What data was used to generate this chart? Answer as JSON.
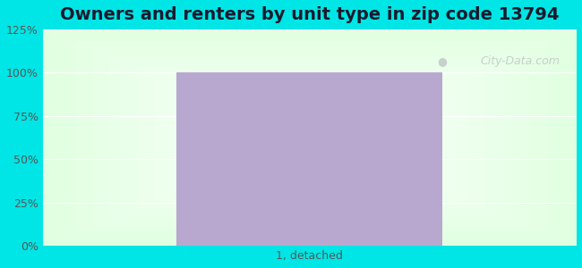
{
  "title": "Owners and renters by unit type in zip code 13794",
  "categories": [
    "1, detached"
  ],
  "values": [
    100
  ],
  "bar_color": "#b8a8d0",
  "bar_width": 0.5,
  "ylim": [
    0,
    125
  ],
  "yticks": [
    0,
    25,
    50,
    75,
    100,
    125
  ],
  "ytick_labels": [
    "0%",
    "25%",
    "50%",
    "75%",
    "100%",
    "125%"
  ],
  "title_fontsize": 14,
  "tick_fontsize": 9,
  "bg_outer_color": "#00e5e5",
  "watermark_text": "City-Data.com",
  "watermark_color": "#c0c8c8",
  "grid_color": "#ffffff",
  "title_color": "#1a1a2e"
}
